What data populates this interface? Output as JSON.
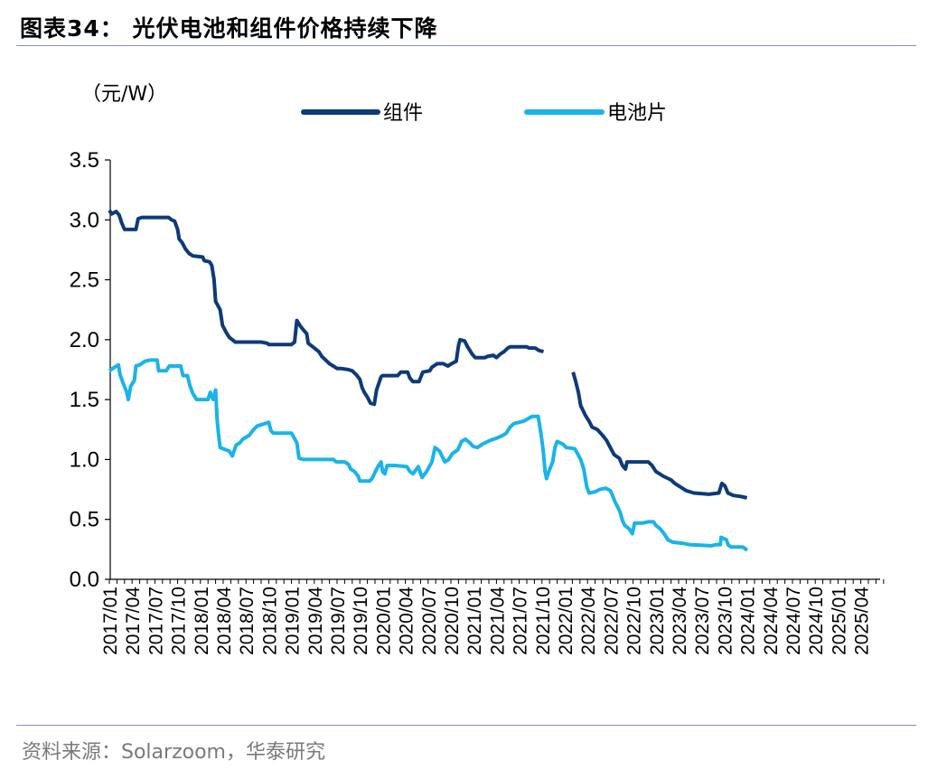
{
  "figure": {
    "title": "图表34：  光伏电池和组件价格持续下降",
    "source": "资料来源：Solarzoom，华泰研究"
  },
  "chart_data": {
    "type": "line",
    "title": "光伏电池和组件价格持续下降",
    "ylabel": "（元/W）",
    "xlabel": "",
    "ylim": [
      0,
      3.5
    ],
    "yticks": [
      "0.0",
      "0.5",
      "1.0",
      "1.5",
      "2.0",
      "2.5",
      "3.0",
      "3.5"
    ],
    "xticks": [
      "2017/01",
      "2017/04",
      "2017/07",
      "2017/10",
      "2018/01",
      "2018/04",
      "2018/07",
      "2018/10",
      "2019/01",
      "2019/04",
      "2019/07",
      "2019/10",
      "2020/01",
      "2020/04",
      "2020/07",
      "2020/10",
      "2021/01",
      "2021/04",
      "2021/07",
      "2021/10",
      "2022/01",
      "2022/04",
      "2022/07",
      "2022/10",
      "2023/01",
      "2023/04",
      "2023/07",
      "2023/10",
      "2024/01",
      "2024/04",
      "2024/07",
      "2024/10",
      "2025/01",
      "2025/04"
    ],
    "x_start": "2017/01",
    "x_end": "2025/06",
    "legend_position": "top-center",
    "series": [
      {
        "name": "组件",
        "color": "#0d3a7a",
        "points": [
          [
            0,
            3.08
          ],
          [
            0.3,
            3.05
          ],
          [
            0.9,
            3.07
          ],
          [
            1.3,
            3.04
          ],
          [
            1.6,
            2.98
          ],
          [
            2.0,
            2.92
          ],
          [
            3.5,
            2.92
          ],
          [
            3.8,
            3.01
          ],
          [
            4.3,
            3.02
          ],
          [
            7.8,
            3.02
          ],
          [
            8.2,
            3.0
          ],
          [
            8.6,
            2.99
          ],
          [
            9.0,
            2.92
          ],
          [
            9.2,
            2.84
          ],
          [
            9.6,
            2.81
          ],
          [
            10.0,
            2.76
          ],
          [
            10.5,
            2.72
          ],
          [
            11.0,
            2.7
          ],
          [
            12.3,
            2.69
          ],
          [
            12.5,
            2.66
          ],
          [
            13.2,
            2.65
          ],
          [
            13.5,
            2.62
          ],
          [
            13.8,
            2.5
          ],
          [
            14.0,
            2.32
          ],
          [
            14.6,
            2.25
          ],
          [
            14.9,
            2.12
          ],
          [
            15.4,
            2.06
          ],
          [
            15.8,
            2.02
          ],
          [
            16.2,
            2.0
          ],
          [
            16.6,
            1.98
          ],
          [
            20.0,
            1.98
          ],
          [
            20.8,
            1.97
          ],
          [
            21.0,
            1.96
          ],
          [
            24.0,
            1.96
          ],
          [
            24.4,
            1.98
          ],
          [
            24.7,
            2.16
          ],
          [
            25.2,
            2.11
          ],
          [
            25.6,
            2.08
          ],
          [
            26.0,
            2.05
          ],
          [
            26.2,
            1.97
          ],
          [
            27.0,
            1.93
          ],
          [
            27.6,
            1.9
          ],
          [
            28.0,
            1.86
          ],
          [
            28.5,
            1.83
          ],
          [
            29.0,
            1.8
          ],
          [
            29.5,
            1.78
          ],
          [
            30.0,
            1.76
          ],
          [
            30.5,
            1.76
          ],
          [
            31.5,
            1.75
          ],
          [
            32.0,
            1.74
          ],
          [
            32.5,
            1.71
          ],
          [
            33.0,
            1.67
          ],
          [
            33.3,
            1.6
          ],
          [
            33.6,
            1.56
          ],
          [
            34.0,
            1.52
          ],
          [
            34.4,
            1.47
          ],
          [
            34.9,
            1.46
          ],
          [
            35.2,
            1.58
          ],
          [
            35.8,
            1.69
          ],
          [
            36.0,
            1.7
          ],
          [
            38.0,
            1.7
          ],
          [
            38.4,
            1.73
          ],
          [
            39.3,
            1.73
          ],
          [
            39.6,
            1.68
          ],
          [
            40.0,
            1.65
          ],
          [
            40.8,
            1.65
          ],
          [
            41.3,
            1.73
          ],
          [
            42.2,
            1.74
          ],
          [
            42.5,
            1.77
          ],
          [
            43.2,
            1.8
          ],
          [
            44.0,
            1.8
          ],
          [
            44.6,
            1.78
          ],
          [
            45.1,
            1.8
          ],
          [
            45.7,
            1.82
          ],
          [
            46.0,
            1.95
          ],
          [
            46.2,
            2.0
          ],
          [
            46.8,
            1.99
          ],
          [
            47.2,
            1.94
          ],
          [
            47.8,
            1.88
          ],
          [
            48.2,
            1.85
          ],
          [
            49.5,
            1.85
          ],
          [
            49.8,
            1.86
          ],
          [
            50.6,
            1.87
          ],
          [
            51.0,
            1.85
          ],
          [
            51.5,
            1.88
          ],
          [
            52.0,
            1.9
          ],
          [
            52.5,
            1.93
          ],
          [
            52.8,
            1.94
          ],
          [
            55.0,
            1.94
          ],
          [
            55.3,
            1.93
          ],
          [
            56.1,
            1.93
          ],
          [
            56.6,
            1.91
          ],
          [
            57.2,
            1.9
          ],
          [
            null,
            null
          ],
          [
            61.1,
            1.73
          ],
          [
            61.4,
            1.66
          ],
          [
            61.8,
            1.56
          ],
          [
            62.1,
            1.45
          ],
          [
            62.7,
            1.37
          ],
          [
            63.2,
            1.32
          ],
          [
            63.6,
            1.27
          ],
          [
            64.3,
            1.25
          ],
          [
            65.0,
            1.2
          ],
          [
            65.5,
            1.16
          ],
          [
            66.0,
            1.1
          ],
          [
            66.5,
            1.04
          ],
          [
            67.2,
            1.01
          ],
          [
            67.6,
            0.95
          ],
          [
            68.0,
            0.92
          ],
          [
            68.2,
            0.98
          ],
          [
            69.0,
            0.98
          ],
          [
            69.8,
            0.98
          ],
          [
            71.0,
            0.98
          ],
          [
            71.5,
            0.95
          ],
          [
            72.0,
            0.9
          ],
          [
            72.5,
            0.88
          ],
          [
            73.0,
            0.86
          ],
          [
            74.0,
            0.83
          ],
          [
            74.5,
            0.8
          ],
          [
            75.0,
            0.78
          ],
          [
            75.5,
            0.76
          ],
          [
            76.0,
            0.74
          ],
          [
            77.0,
            0.72
          ],
          [
            79.0,
            0.71
          ],
          [
            80.3,
            0.72
          ],
          [
            80.7,
            0.8
          ],
          [
            81.1,
            0.78
          ],
          [
            81.5,
            0.72
          ],
          [
            82.2,
            0.7
          ],
          [
            83.3,
            0.69
          ],
          [
            84.0,
            0.68
          ]
        ]
      },
      {
        "name": "电池片",
        "color": "#1ab3ea",
        "points": [
          [
            0,
            1.74
          ],
          [
            0.7,
            1.77
          ],
          [
            1.2,
            1.79
          ],
          [
            1.4,
            1.71
          ],
          [
            1.8,
            1.64
          ],
          [
            2.3,
            1.56
          ],
          [
            2.5,
            1.5
          ],
          [
            2.8,
            1.61
          ],
          [
            3.3,
            1.66
          ],
          [
            3.5,
            1.78
          ],
          [
            4.0,
            1.79
          ],
          [
            4.7,
            1.82
          ],
          [
            5.3,
            1.83
          ],
          [
            6.3,
            1.83
          ],
          [
            6.5,
            1.74
          ],
          [
            7.5,
            1.74
          ],
          [
            7.9,
            1.78
          ],
          [
            9.4,
            1.78
          ],
          [
            9.7,
            1.7
          ],
          [
            10.3,
            1.7
          ],
          [
            10.6,
            1.62
          ],
          [
            11.0,
            1.55
          ],
          [
            11.5,
            1.5
          ],
          [
            13.0,
            1.5
          ],
          [
            13.3,
            1.56
          ],
          [
            13.7,
            1.5
          ],
          [
            14.0,
            1.58
          ],
          [
            14.2,
            1.33
          ],
          [
            14.4,
            1.2
          ],
          [
            14.6,
            1.1
          ],
          [
            15.8,
            1.07
          ],
          [
            16.2,
            1.03
          ],
          [
            16.7,
            1.12
          ],
          [
            17.2,
            1.14
          ],
          [
            17.6,
            1.17
          ],
          [
            18.4,
            1.2
          ],
          [
            19.0,
            1.25
          ],
          [
            19.5,
            1.28
          ],
          [
            20.5,
            1.3
          ],
          [
            21.0,
            1.31
          ],
          [
            21.3,
            1.24
          ],
          [
            21.6,
            1.22
          ],
          [
            24.0,
            1.22
          ],
          [
            24.7,
            1.14
          ],
          [
            25.0,
            1.01
          ],
          [
            25.5,
            1.0
          ],
          [
            29.5,
            1.0
          ],
          [
            29.9,
            0.98
          ],
          [
            31.0,
            0.98
          ],
          [
            31.5,
            0.96
          ],
          [
            31.8,
            0.92
          ],
          [
            32.3,
            0.9
          ],
          [
            32.8,
            0.86
          ],
          [
            33.0,
            0.82
          ],
          [
            34.3,
            0.82
          ],
          [
            34.6,
            0.84
          ],
          [
            35.3,
            0.93
          ],
          [
            35.8,
            0.98
          ],
          [
            36.0,
            0.9
          ],
          [
            36.3,
            0.88
          ],
          [
            36.6,
            0.95
          ],
          [
            37.7,
            0.95
          ],
          [
            39.2,
            0.94
          ],
          [
            39.6,
            0.9
          ],
          [
            40.0,
            0.88
          ],
          [
            40.7,
            0.94
          ],
          [
            41.2,
            0.85
          ],
          [
            41.8,
            0.9
          ],
          [
            42.5,
            0.98
          ],
          [
            42.9,
            1.1
          ],
          [
            43.5,
            1.07
          ],
          [
            44.2,
            0.98
          ],
          [
            44.7,
            1.0
          ],
          [
            45.2,
            1.05
          ],
          [
            45.9,
            1.08
          ],
          [
            46.4,
            1.15
          ],
          [
            46.9,
            1.17
          ],
          [
            47.5,
            1.14
          ],
          [
            47.9,
            1.11
          ],
          [
            48.5,
            1.1
          ],
          [
            49.2,
            1.13
          ],
          [
            50.2,
            1.16
          ],
          [
            51.1,
            1.18
          ],
          [
            51.8,
            1.2
          ],
          [
            52.3,
            1.22
          ],
          [
            52.8,
            1.27
          ],
          [
            53.3,
            1.3
          ],
          [
            54.6,
            1.32
          ],
          [
            55.7,
            1.36
          ],
          [
            56.5,
            1.36
          ],
          [
            56.9,
            1.2
          ],
          [
            57.2,
            1.05
          ],
          [
            57.4,
            0.9
          ],
          [
            57.6,
            0.84
          ],
          [
            57.9,
            0.9
          ],
          [
            58.4,
            0.98
          ],
          [
            58.7,
            1.1
          ],
          [
            59.0,
            1.15
          ],
          [
            59.7,
            1.13
          ],
          [
            60.2,
            1.1
          ],
          [
            61.3,
            1.09
          ],
          [
            61.6,
            1.06
          ],
          [
            62.1,
            1.0
          ],
          [
            62.5,
            0.92
          ],
          [
            62.9,
            0.77
          ],
          [
            63.2,
            0.72
          ],
          [
            64.0,
            0.73
          ],
          [
            64.6,
            0.75
          ],
          [
            65.4,
            0.76
          ],
          [
            66.0,
            0.74
          ],
          [
            66.3,
            0.7
          ],
          [
            66.6,
            0.65
          ],
          [
            67.0,
            0.6
          ],
          [
            67.3,
            0.56
          ],
          [
            67.6,
            0.49
          ],
          [
            67.9,
            0.45
          ],
          [
            68.5,
            0.42
          ],
          [
            68.9,
            0.38
          ],
          [
            69.2,
            0.47
          ],
          [
            70.3,
            0.47
          ],
          [
            71.0,
            0.48
          ],
          [
            71.7,
            0.48
          ],
          [
            72.0,
            0.45
          ],
          [
            72.6,
            0.42
          ],
          [
            73.2,
            0.37
          ],
          [
            73.6,
            0.33
          ],
          [
            74.2,
            0.31
          ],
          [
            75.6,
            0.3
          ],
          [
            76.4,
            0.29
          ],
          [
            79.3,
            0.28
          ],
          [
            80.0,
            0.29
          ],
          [
            80.5,
            0.29
          ],
          [
            80.6,
            0.35
          ],
          [
            81.3,
            0.33
          ],
          [
            81.5,
            0.29
          ],
          [
            81.9,
            0.27
          ],
          [
            83.4,
            0.27
          ],
          [
            83.7,
            0.26
          ],
          [
            84.0,
            0.24
          ]
        ]
      }
    ]
  }
}
